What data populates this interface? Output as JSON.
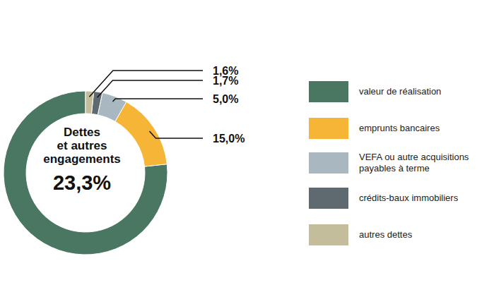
{
  "chart_data": {
    "type": "pie",
    "categories": [
      "valeur de réalisation",
      "emprunts bancaires",
      "VEFA ou autre acquisitions payables à terme",
      "crédits-baux immobiliers",
      "autres dettes"
    ],
    "values": [
      76.7,
      15.0,
      5.0,
      1.7,
      1.6
    ],
    "value_labels": [
      null,
      "15,0%",
      "5,0%",
      "1,7%",
      "1,6%"
    ],
    "colors": [
      "#4a7762",
      "#f6b537",
      "#a9b8c0",
      "#5f6a70",
      "#c4bd9c"
    ],
    "data_labels": true,
    "legend": "right",
    "center_text": [
      "Dettes",
      "et autres",
      "engagements"
    ],
    "center_value": 23.3,
    "center_value_label": "23,3%"
  }
}
